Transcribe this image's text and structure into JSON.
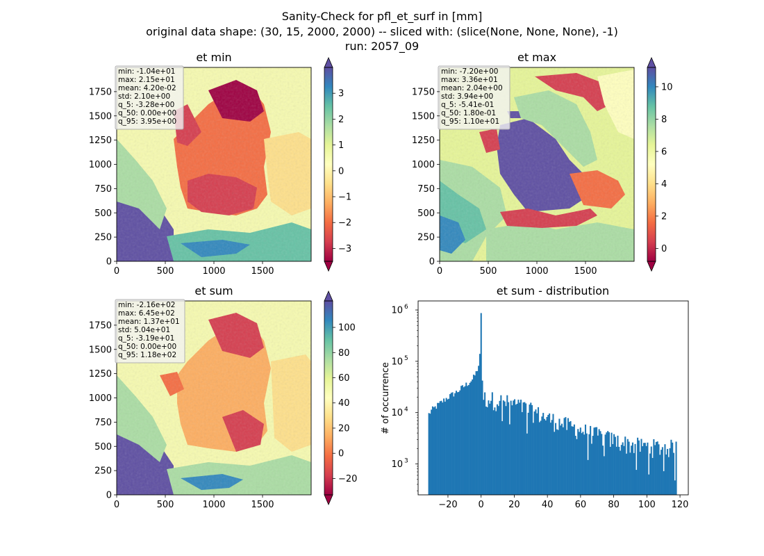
{
  "figure": {
    "title_lines": [
      "Sanity-Check for pfl_et_surf in [mm]",
      "original data shape: (30, 15, 2000, 2000) -- sliced with: (slice(None, None, None), -1)",
      "run: 2057_09"
    ]
  },
  "colors": {
    "spectral": [
      "#9e0142",
      "#d53e4f",
      "#f46d43",
      "#fdae61",
      "#fee08b",
      "#ffffbf",
      "#e6f598",
      "#abdda4",
      "#66c2a5",
      "#3288bd",
      "#5e4fa2"
    ],
    "histogram_bar": "#1f77b4",
    "stats_box_bg": "#f2f2f2",
    "stats_box_border": "#b0b0b0"
  },
  "chart_data": [
    {
      "type": "heatmap",
      "title": "et min",
      "xlim": [
        0,
        2000
      ],
      "ylim": [
        0,
        2000
      ],
      "x_ticks": [
        "0",
        "500",
        "1000",
        "1500"
      ],
      "y_ticks": [
        "0",
        "250",
        "500",
        "750",
        "1000",
        "1250",
        "1500",
        "1750"
      ],
      "colorbar": {
        "min": -3.5,
        "max": 4.0,
        "ticks": [
          "−3",
          "−2",
          "−1",
          "0",
          "1",
          "2",
          "3"
        ],
        "tick_values": [
          -3,
          -2,
          -1,
          0,
          1,
          2,
          3
        ],
        "extend": "both",
        "colormap": "Spectral"
      },
      "stats": [
        "min: -1.04e+01",
        "max: 2.15e+01",
        "mean: 4.20e-02",
        "std: 2.10e+00",
        "q_5: -3.28e+00",
        "q_50: 0.00e+00",
        "q_95: 3.95e+00"
      ]
    },
    {
      "type": "heatmap",
      "title": "et max",
      "xlim": [
        0,
        2000
      ],
      "ylim": [
        0,
        2000
      ],
      "x_ticks": [
        "0",
        "500",
        "1000",
        "1500"
      ],
      "y_ticks": [
        "0",
        "250",
        "500",
        "750",
        "1000",
        "1250",
        "1500",
        "1750"
      ],
      "colorbar": {
        "min": -0.8,
        "max": 11.2,
        "ticks": [
          "0",
          "2",
          "4",
          "6",
          "8",
          "10"
        ],
        "tick_values": [
          0,
          2,
          4,
          6,
          8,
          10
        ],
        "extend": "both",
        "colormap": "Spectral"
      },
      "stats": [
        "min: -7.20e+00",
        "max: 3.36e+01",
        "mean: 2.04e+00",
        "std: 3.94e+00",
        "q_5: -5.41e-01",
        "q_50: 1.80e-01",
        "q_95: 1.10e+01"
      ]
    },
    {
      "type": "heatmap",
      "title": "et sum",
      "xlim": [
        0,
        2000
      ],
      "ylim": [
        0,
        2000
      ],
      "x_ticks": [
        "0",
        "500",
        "1000",
        "1500"
      ],
      "y_ticks": [
        "0",
        "250",
        "500",
        "750",
        "1000",
        "1250",
        "1500",
        "1750"
      ],
      "colorbar": {
        "min": -33,
        "max": 121,
        "ticks": [
          "−20",
          "0",
          "20",
          "40",
          "60",
          "80",
          "100"
        ],
        "tick_values": [
          -20,
          0,
          20,
          40,
          60,
          80,
          100
        ],
        "extend": "both",
        "colormap": "Spectral"
      },
      "stats": [
        "min: -2.16e+02",
        "max: 6.45e+02",
        "mean: 1.37e+01",
        "std: 5.04e+01",
        "q_5: -3.19e+01",
        "q_50: 0.00e+00",
        "q_95: 1.18e+02"
      ]
    },
    {
      "type": "bar",
      "title": "et sum - distribution",
      "xlabel": "",
      "ylabel": "# of occurrence",
      "log_y": true,
      "xlim": [
        -38,
        125
      ],
      "ylim": [
        250,
        1500000
      ],
      "x_ticks": [
        "−20",
        "0",
        "20",
        "40",
        "60",
        "80",
        "100",
        "120"
      ],
      "x_tick_values": [
        -20,
        0,
        20,
        40,
        60,
        80,
        100,
        120
      ],
      "y_ticks": [
        {
          "base": "10",
          "exp": "3",
          "value": 1000
        },
        {
          "base": "10",
          "exp": "4",
          "value": 10000
        },
        {
          "base": "10",
          "exp": "5",
          "value": 100000
        },
        {
          "base": "10",
          "exp": "6",
          "value": 1000000
        }
      ],
      "bin_range": [
        -31.9,
        118
      ],
      "peak": {
        "x": 0,
        "count": 870000
      },
      "bin_anchors": [
        [
          -31.9,
          9000
        ],
        [
          -30,
          11000
        ],
        [
          -25,
          15000
        ],
        [
          -20,
          20000
        ],
        [
          -15,
          25000
        ],
        [
          -10,
          33000
        ],
        [
          -5,
          45000
        ],
        [
          -3,
          60000
        ],
        [
          -1.2,
          90000
        ],
        [
          -0.5,
          160000
        ],
        [
          0,
          870000
        ],
        [
          0.8,
          25000
        ],
        [
          2,
          21000
        ],
        [
          10,
          19000
        ],
        [
          20,
          16000
        ],
        [
          30,
          12000
        ],
        [
          40,
          8500
        ],
        [
          50,
          6500
        ],
        [
          60,
          5000
        ],
        [
          70,
          4000
        ],
        [
          80,
          3200
        ],
        [
          90,
          2600
        ],
        [
          100,
          2400
        ],
        [
          110,
          2300
        ],
        [
          118,
          2300
        ]
      ]
    }
  ]
}
